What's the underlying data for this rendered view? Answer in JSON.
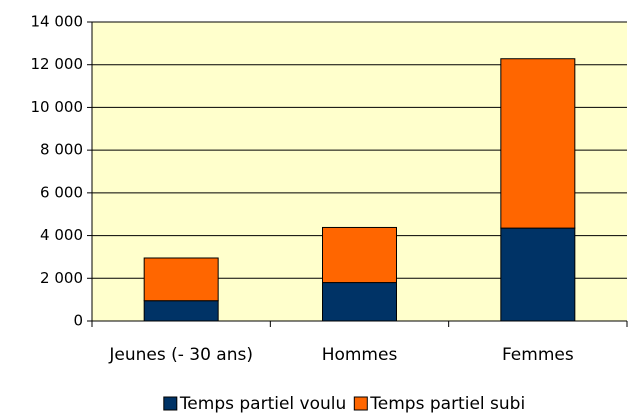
{
  "chart_data": {
    "type": "stacked_bar",
    "categories": [
      "Jeunes (- 30 ans)",
      "Hommes",
      "Femmes"
    ],
    "series": [
      {
        "name": "Temps partiel voulu",
        "color": "#003366",
        "values": [
          950,
          1800,
          4350
        ]
      },
      {
        "name": "Temps partiel subi",
        "color": "#ff6600",
        "values": [
          2000,
          2580,
          7930
        ]
      }
    ],
    "ylim": [
      0,
      14000
    ],
    "yticks": [
      0,
      {
        "value": 2000,
        "label": "2 000"
      },
      {
        "value": 4000,
        "label": "4 000"
      },
      {
        "value": 6000,
        "label": "6 000"
      },
      {
        "value": 8000,
        "label": "8 000"
      },
      {
        "value": 10000,
        "label": "10 000"
      },
      {
        "value": 12000,
        "label": "12 000"
      },
      {
        "value": 14000,
        "label": "14 000"
      }
    ],
    "grid": true,
    "legend": "bottom",
    "plot_background": "#ffffcc"
  }
}
